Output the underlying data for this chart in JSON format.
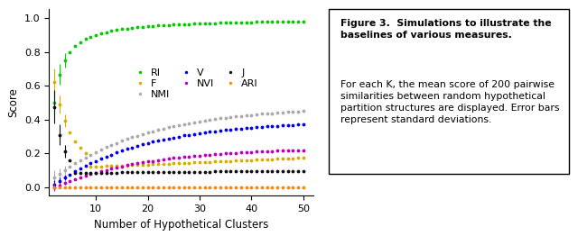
{
  "xlabel": "Number of Hypothetical Clusters",
  "ylabel": "Score",
  "xlim": [
    1,
    52
  ],
  "ylim": [
    -0.05,
    1.05
  ],
  "colors": {
    "RI": "#00cc00",
    "F": "#ddaa00",
    "NMI": "#aaaaaa",
    "V": "#0000ee",
    "NVI": "#bb00bb",
    "J": "#111111",
    "ARI": "#ff8800"
  },
  "marker_size": 3.5,
  "caption_bold": "Figure 3.  Simulations to illustrate the baselines of various measures.",
  "caption_normal": " For each K, the mean score of 200 pairwise similarities between random hypothetical partition structures are displayed. Error bars represent standard deviations."
}
